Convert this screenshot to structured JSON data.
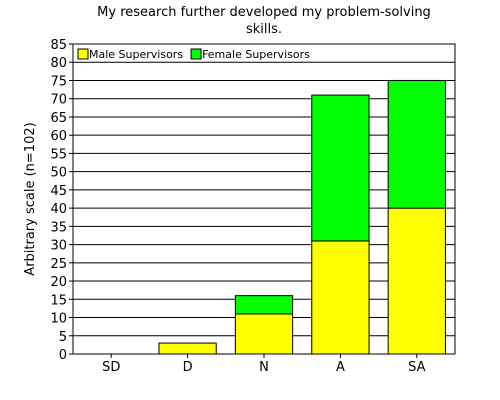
{
  "chart_data": {
    "type": "bar",
    "stacked": true,
    "title_lines": [
      "My research further developed my problem-solving",
      "skills."
    ],
    "xlabel": "",
    "ylabel": "Arbitrary scale (n=102)",
    "categories": [
      "SD",
      "D",
      "N",
      "A",
      "SA"
    ],
    "series": [
      {
        "name": "Male Supervisors",
        "color": "#ffff00",
        "values": [
          0,
          3,
          11,
          31,
          40
        ]
      },
      {
        "name": "Female Supervisors",
        "color": "#00ff00",
        "values": [
          0,
          0,
          5,
          40,
          35
        ]
      }
    ],
    "ylim": [
      0,
      85
    ],
    "ytick_step": 5,
    "grid": "horizontal",
    "legend_position": "top-left"
  }
}
